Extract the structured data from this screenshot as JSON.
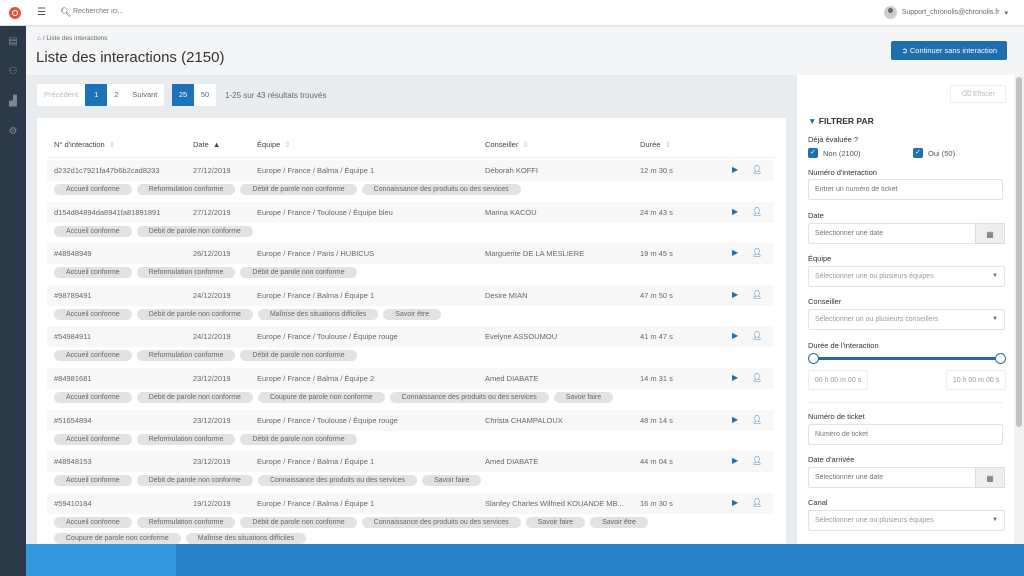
{
  "topbar": {
    "search_placeholder": "Rechercher ici...",
    "user": "Support_chronolis@chronolis.fr"
  },
  "breadcrumb": {
    "current": "Liste des interactions"
  },
  "page": {
    "title": "Liste des interactions (2150)",
    "cta": "Continuer sans interaction"
  },
  "pagination": {
    "prev": "Précédent",
    "pages": [
      "1",
      "2"
    ],
    "next": "Suivant",
    "per_page": [
      "25",
      "50"
    ],
    "results": "1-25 sur 43 résultats trouvés"
  },
  "table": {
    "headers": [
      "N° d'interaction",
      "Date",
      "Équipe",
      "Conseiller",
      "Durée"
    ],
    "rows": [
      {
        "id": "d232d1c7921fa47b6b2cad8233",
        "date": "27/12/2019",
        "team": "Europe / France / Balma / Équipe 1",
        "agent": "Déborah KOFFI",
        "dur": "12 m 30 s",
        "tags": [
          "Accueil conforme",
          "Reformulation conforme",
          "Débit de parole non conforme",
          "Connaissance des produits ou des services"
        ]
      },
      {
        "id": "d154d84894da8941fa81891891",
        "date": "27/12/2019",
        "team": "Europe / France / Toulouse / Équipe bleu",
        "agent": "Marina KACOU",
        "dur": "24 m 43 s",
        "tags": [
          "Accueil conforme",
          "Débit de parole non conforme"
        ]
      },
      {
        "id": "#48948949",
        "date": "26/12/2019",
        "team": "Europe / France / Paris / HUBICUS",
        "agent": "Marguerite DE LA MESLIERE",
        "dur": "19 m 45 s",
        "tags": [
          "Accueil conforme",
          "Reformulation conforme",
          "Débit de parole non conforme"
        ]
      },
      {
        "id": "#98789491",
        "date": "24/12/2019",
        "team": "Europe / France / Balma / Équipe 1",
        "agent": "Desire MIAN",
        "dur": "47 m 50 s",
        "tags": [
          "Accueil conforme",
          "Débit de parole non conforme",
          "Maîtrise des situations difficiles",
          "Savoir être"
        ]
      },
      {
        "id": "#54984911",
        "date": "24/12/2019",
        "team": "Europe / France / Toulouse / Équipe rouge",
        "agent": "Evelyne ASSOUMOU",
        "dur": "41 m 47 s",
        "tags": [
          "Accueil conforme",
          "Reformulation conforme",
          "Débit de parole non conforme"
        ]
      },
      {
        "id": "#84981681",
        "date": "23/12/2019",
        "team": "Europe / France / Balma / Équipe 2",
        "agent": "Amed DIABATE",
        "dur": "14 m 31 s",
        "tags": [
          "Accueil conforme",
          "Débit de parole non conforme",
          "Coupure de parole non conforme",
          "Connaissance des produits ou des services",
          "Savoir faire"
        ]
      },
      {
        "id": "#51654894",
        "date": "23/12/2019",
        "team": "Europe / France / Toulouse / Équipe rouge",
        "agent": "Christa CHAMPALOUX",
        "dur": "48 m 14 s",
        "tags": [
          "Accueil conforme",
          "Reformulation conforme",
          "Débit de parole non conforme"
        ]
      },
      {
        "id": "#48948153",
        "date": "23/12/2019",
        "team": "Europe / France / Balma / Équipe 1",
        "agent": "Amed DIABATE",
        "dur": "44 m 04 s",
        "tags": [
          "Accueil conforme",
          "Débit de parole non conforme",
          "Connaissance des produits ou des services",
          "Savoir faire"
        ]
      },
      {
        "id": "#59410184",
        "date": "19/12/2019",
        "team": "Europe / France / Balma / Équipe 1",
        "agent": "Slanfey Charles Wilfried KOUANDE MB...",
        "dur": "16 m 30 s",
        "tags": [
          "Accueil conforme",
          "Reformulation conforme",
          "Débit de parole non conforme",
          "Connaissance des produits ou des services",
          "Savoir faire",
          "Savoir être",
          "Coupure de parole non conforme",
          "Maîtrise des situations difficiles"
        ]
      }
    ]
  },
  "filters": {
    "clear": "Effacer",
    "title": "FILTRER PAR",
    "evaluated_label": "Déjà évaluée ?",
    "no": "Non (2100)",
    "yes": "Oui (50)",
    "interaction_label": "Numéro d'interaction",
    "interaction_ph": "Entrer un numéro de ticket",
    "date_label": "Date",
    "date_ph": "Sélectionner une date",
    "team_label": "Équipe",
    "team_ph": "Sélectionner une ou plusieurs équipes",
    "agent_label": "Conseiller",
    "agent_ph": "Sélectionner un ou plusieurs conseillers",
    "duration_label": "Durée de l'interaction",
    "duration_min": "00 h 00 m 00 s",
    "duration_max": "10 h 00 m 00 s",
    "duration_range": [
      0,
      1
    ],
    "ticket_label": "Numéro de ticket",
    "ticket_ph": "Numéro de ticket",
    "arrival_label": "Date d'arrivée",
    "arrival_ph": "Sélectionner une date",
    "channel_label": "Canal",
    "channel_ph": "Sélectionner une ou plusieurs équipes"
  }
}
